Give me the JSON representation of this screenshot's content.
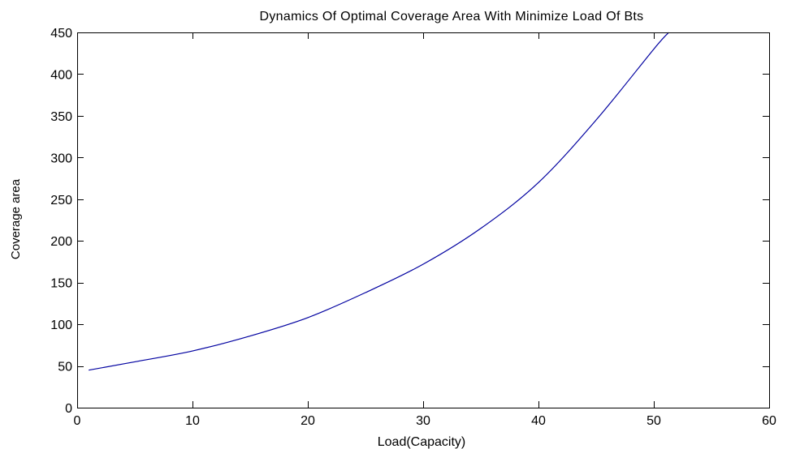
{
  "chart_data": {
    "type": "line",
    "title": "Dynamics Of Optimal Coverage Area With Minimize Load Of Bts",
    "xlabel": "Load(Capacity)",
    "ylabel": "Coverage area",
    "xlim": [
      0,
      60
    ],
    "ylim": [
      0,
      450
    ],
    "xticks": [
      0,
      10,
      20,
      30,
      40,
      50,
      60
    ],
    "yticks": [
      0,
      50,
      100,
      150,
      200,
      250,
      300,
      350,
      400,
      450
    ],
    "grid": false,
    "legend": "none",
    "series": [
      {
        "color": "#0000a0",
        "x": [
          1,
          5,
          10,
          15,
          20,
          25,
          30,
          35,
          40,
          45,
          50,
          51.3
        ],
        "y": [
          45,
          55,
          68,
          86,
          108,
          138,
          172,
          215,
          270,
          345,
          430,
          450
        ]
      }
    ]
  }
}
